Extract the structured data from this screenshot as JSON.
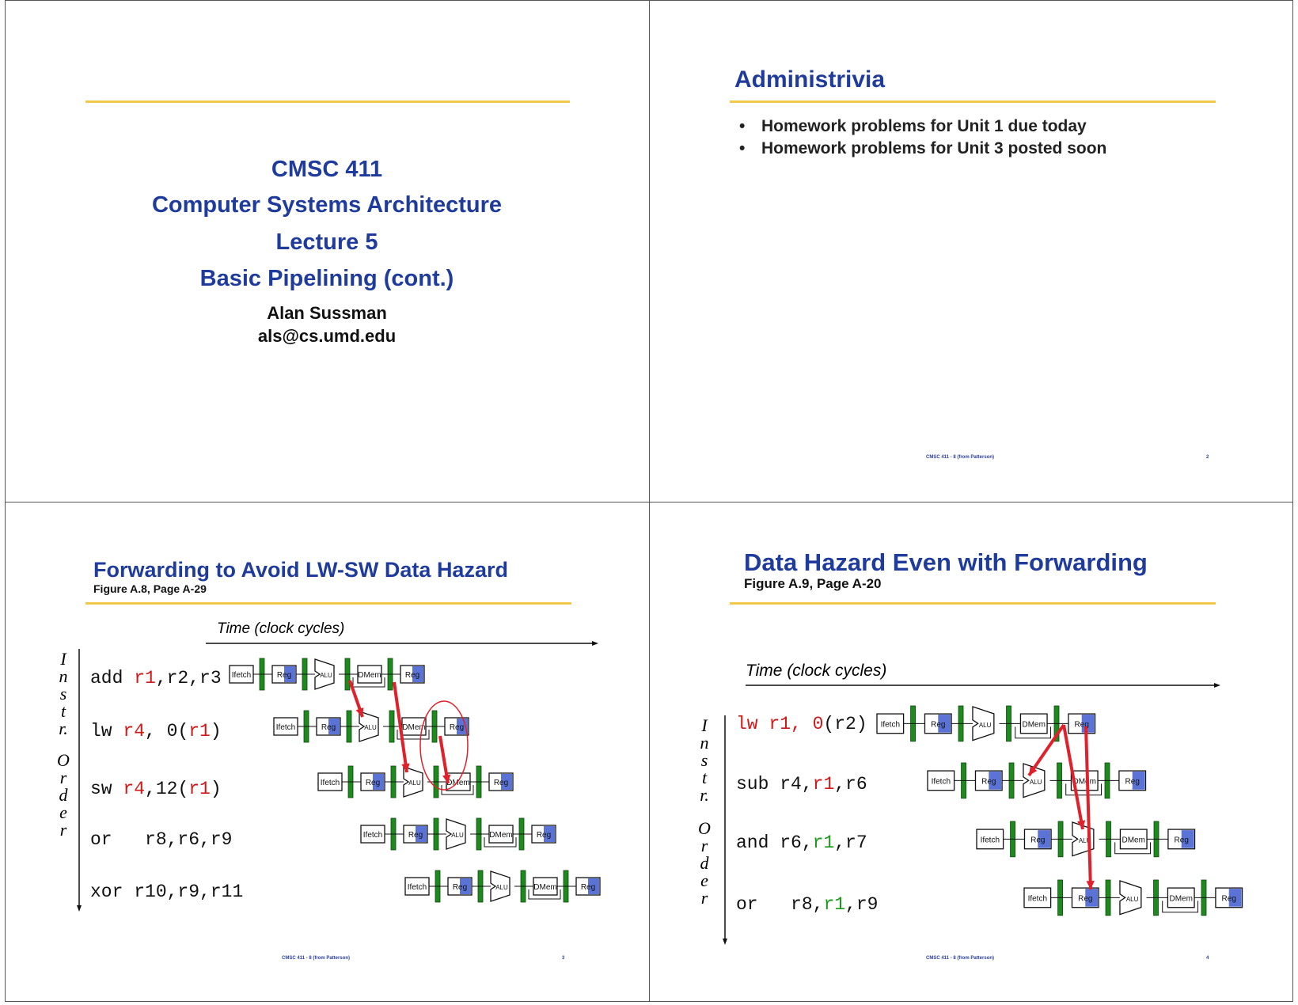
{
  "slide1": {
    "course": "CMSC 411",
    "subtitle": "Computer Systems Architecture",
    "lecture": "Lecture 5",
    "topic": "Basic Pipelining (cont.)",
    "author": "Alan Sussman",
    "email": "als@cs.umd.edu"
  },
  "slide2": {
    "title": "Administrivia",
    "bullets": [
      "Homework problems for Unit 1 due today",
      "Homework problems for Unit 3 posted soon"
    ],
    "footer": "CMSC 411 - 8 (from Patterson)",
    "page": "2"
  },
  "slide3": {
    "title": "Forwarding to Avoid LW-SW Data Hazard",
    "figure": "Figure A.8, Page A-29",
    "time_label": "Time (clock cycles)",
    "order_label": [
      "I",
      "n",
      "s",
      "t",
      "r.",
      "",
      "O",
      "r",
      "d",
      "e",
      "r"
    ],
    "instructions": [
      {
        "op": "add ",
        "args": [
          {
            "t": "r1",
            "c": "red"
          },
          {
            "t": ",r2,r3",
            "c": ""
          }
        ]
      },
      {
        "op": "lw ",
        "args": [
          {
            "t": "r4",
            "c": "red"
          },
          {
            "t": ", 0(",
            "c": ""
          },
          {
            "t": "r1",
            "c": "red"
          },
          {
            "t": ")",
            "c": ""
          }
        ]
      },
      {
        "op": "sw ",
        "args": [
          {
            "t": "r4",
            "c": "red"
          },
          {
            "t": ",12(",
            "c": ""
          },
          {
            "t": "r1",
            "c": "red"
          },
          {
            "t": ")",
            "c": ""
          }
        ]
      },
      {
        "op": "or   ",
        "args": [
          {
            "t": "r8,r6,r9",
            "c": ""
          }
        ]
      },
      {
        "op": "xor ",
        "args": [
          {
            "t": "r10,r9,r11",
            "c": ""
          }
        ]
      }
    ],
    "stages": [
      "Ifetch",
      "Reg",
      "ALU",
      "DMem",
      "Reg"
    ],
    "footer": "CMSC 411 - 8 (from Patterson)",
    "page": "3"
  },
  "slide4": {
    "title": "Data Hazard Even with Forwarding",
    "figure": "Figure A.9, Page A-20",
    "time_label": "Time (clock cycles)",
    "order_label": [
      "I",
      "n",
      "s",
      "t",
      "r.",
      "",
      "O",
      "r",
      "d",
      "e",
      "r"
    ],
    "instructions": [
      {
        "op": "lw ",
        "args": [
          {
            "t": "lw r1, 0",
            "c": "red"
          },
          {
            "t": "(r2)",
            "c": ""
          }
        ]
      },
      {
        "op": "sub ",
        "args": [
          {
            "t": "r4,",
            "c": ""
          },
          {
            "t": "r1",
            "c": "red"
          },
          {
            "t": ",r6",
            "c": ""
          }
        ]
      },
      {
        "op": "and ",
        "args": [
          {
            "t": "r6,",
            "c": ""
          },
          {
            "t": "r1",
            "c": "green"
          },
          {
            "t": ",r7",
            "c": ""
          }
        ]
      },
      {
        "op": "or   ",
        "args": [
          {
            "t": "r8,",
            "c": ""
          },
          {
            "t": "r1",
            "c": "green"
          },
          {
            "t": ",r9",
            "c": ""
          }
        ]
      }
    ],
    "footer": "CMSC 411 - 8 (from Patterson)",
    "page": "4"
  },
  "colors": {
    "title_blue": "#1f3c9c",
    "rule_gold": "#f2c84b",
    "hazard_red": "#e0202a",
    "latch_green": "#1e8a1e",
    "reg_blue": "#5b73d6"
  }
}
